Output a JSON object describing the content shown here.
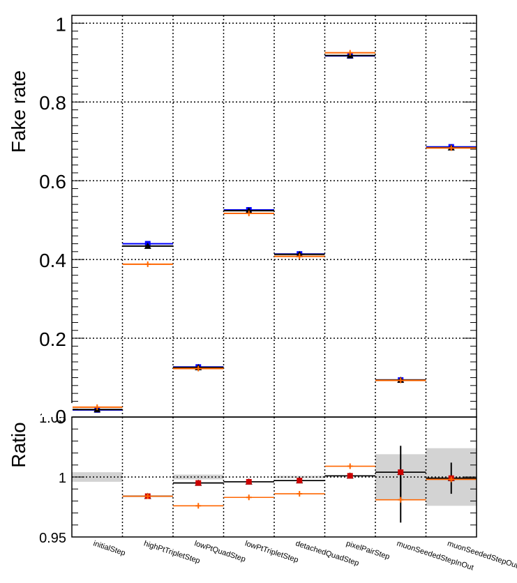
{
  "chart_data": [
    {
      "type": "scatter",
      "ylabel": "Fake rate",
      "ylim": [
        0,
        1.02
      ],
      "yticks": [
        "0.2",
        "0.4",
        "0.6",
        "0.8",
        "1"
      ],
      "categories": [
        "initialStep",
        "highPtTripletStep",
        "lowPtQuadStep",
        "lowPtTripletStep",
        "detachedQuadStep",
        "pixelPairStep",
        "muonSeededStepInOut",
        "muonSeededStepOutIn"
      ],
      "grid": true,
      "series": [
        {
          "marker": "square",
          "color": "#0000ff",
          "values": [
            0.018,
            0.44,
            0.127,
            0.526,
            0.414,
            0.917,
            0.094,
            0.686
          ]
        },
        {
          "marker": "triangle",
          "color": "#000000",
          "values": [
            0.019,
            0.434,
            0.126,
            0.524,
            0.413,
            0.918,
            0.094,
            0.684
          ]
        },
        {
          "marker": "cross",
          "color": "#ff6600",
          "values": [
            0.025,
            0.388,
            0.123,
            0.517,
            0.408,
            0.925,
            0.093,
            0.683
          ]
        }
      ]
    },
    {
      "type": "scatter",
      "ylabel": "Ratio",
      "ylim": [
        0.95,
        1.05
      ],
      "yticks": [
        "0.95",
        "1"
      ],
      "overlap_label": "1.05",
      "categories": [
        "initialStep",
        "highPtTripletStep",
        "lowPtQuadStep",
        "lowPtTripletStep",
        "detachedQuadStep",
        "pixelPairStep",
        "muonSeededStepInOut",
        "muonSeededStepOutIn"
      ],
      "grid": true,
      "uncertainty_band": [
        0.004,
        0.0,
        0.002,
        0.0,
        0.001,
        0.0,
        0.019,
        0.024
      ],
      "series": [
        {
          "marker": "triangle",
          "color": "#000000",
          "values": [
            null,
            0.984,
            0.995,
            0.996,
            0.997,
            1.001,
            1.004,
            0.999
          ],
          "errors": [
            0,
            0,
            0,
            0,
            0,
            0,
            0.022,
            0.013
          ]
        },
        {
          "marker": "square",
          "color": "#cc0000",
          "values": [
            null,
            0.984,
            0.995,
            0.996,
            0.997,
            1.001,
            1.004,
            0.999
          ]
        },
        {
          "marker": "cross",
          "color": "#ff6600",
          "values": [
            null,
            0.984,
            0.976,
            0.983,
            0.986,
            1.009,
            0.981,
            0.998
          ],
          "errors": [
            0,
            0,
            0,
            0,
            0,
            0,
            0.019,
            0
          ]
        }
      ]
    }
  ]
}
